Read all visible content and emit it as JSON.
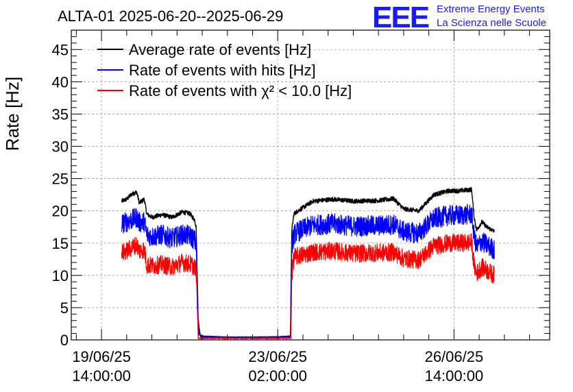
{
  "chart_data": {
    "type": "line",
    "title": "ALTA-01 2025-06-20--2025-06-29",
    "ylabel": "Rate [Hz]",
    "xlabel": "",
    "ylim": [
      0,
      48
    ],
    "yticks": [
      0,
      5,
      10,
      15,
      20,
      25,
      30,
      35,
      40,
      45
    ],
    "x_axis": {
      "unit": "days",
      "range_start_label": "19/06/25 14:00:00",
      "tick_labels": [
        {
          "date": "19/06/25",
          "time": "14:00:00",
          "days": 0
        },
        {
          "date": "23/06/25",
          "time": "02:00:00",
          "days": 3.5
        },
        {
          "date": "26/06/25",
          "time": "14:00:00",
          "days": 7
        }
      ],
      "xlim_days": [
        -0.6,
        8.9
      ]
    },
    "grid": true,
    "legend_position": "top-left",
    "series": [
      {
        "name": "Average rate of events [Hz]",
        "color": "#000000",
        "noise": 0.35,
        "points": [
          [
            0.4,
            21.5
          ],
          [
            0.5,
            21.8
          ],
          [
            0.6,
            22.6
          ],
          [
            0.7,
            22.9
          ],
          [
            0.75,
            21.2
          ],
          [
            0.85,
            21.8
          ],
          [
            0.9,
            19.5
          ],
          [
            1.0,
            19.0
          ],
          [
            1.2,
            19.4
          ],
          [
            1.4,
            19.0
          ],
          [
            1.6,
            19.8
          ],
          [
            1.75,
            19.6
          ],
          [
            1.85,
            18.6
          ],
          [
            1.88,
            17.5
          ],
          [
            1.92,
            3.0
          ],
          [
            1.96,
            0.8
          ],
          [
            2.0,
            0.6
          ],
          [
            2.5,
            0.45
          ],
          [
            3.0,
            0.45
          ],
          [
            3.5,
            0.5
          ],
          [
            3.75,
            0.6
          ],
          [
            3.78,
            17.0
          ],
          [
            3.82,
            19.5
          ],
          [
            3.9,
            20.0
          ],
          [
            4.2,
            21.5
          ],
          [
            4.6,
            21.8
          ],
          [
            5.0,
            21.5
          ],
          [
            5.5,
            21.6
          ],
          [
            5.8,
            21.9
          ],
          [
            6.0,
            20.3
          ],
          [
            6.3,
            20.0
          ],
          [
            6.6,
            22.5
          ],
          [
            6.9,
            23.1
          ],
          [
            7.1,
            23.1
          ],
          [
            7.35,
            23.3
          ],
          [
            7.4,
            19.0
          ],
          [
            7.45,
            17.0
          ],
          [
            7.55,
            18.3
          ],
          [
            7.65,
            17.5
          ],
          [
            7.8,
            16.8
          ]
        ]
      },
      {
        "name": "Rate of events with hits [Hz]",
        "color": "#0000ff",
        "noise": 1.6,
        "points": [
          [
            0.4,
            18.0
          ],
          [
            0.5,
            18.3
          ],
          [
            0.6,
            18.6
          ],
          [
            0.7,
            19.0
          ],
          [
            0.75,
            18.2
          ],
          [
            0.85,
            18.3
          ],
          [
            0.9,
            16.3
          ],
          [
            1.0,
            16.0
          ],
          [
            1.2,
            16.3
          ],
          [
            1.4,
            15.7
          ],
          [
            1.6,
            16.3
          ],
          [
            1.75,
            16.2
          ],
          [
            1.85,
            15.5
          ],
          [
            1.88,
            14.7
          ],
          [
            1.92,
            2.0
          ],
          [
            1.96,
            0.6
          ],
          [
            2.0,
            0.45
          ],
          [
            2.5,
            0.35
          ],
          [
            3.0,
            0.35
          ],
          [
            3.5,
            0.4
          ],
          [
            3.75,
            0.5
          ],
          [
            3.78,
            14.3
          ],
          [
            3.82,
            16.3
          ],
          [
            3.9,
            16.8
          ],
          [
            4.2,
            17.8
          ],
          [
            4.6,
            18.0
          ],
          [
            5.0,
            17.6
          ],
          [
            5.5,
            17.7
          ],
          [
            5.8,
            17.9
          ],
          [
            6.0,
            16.8
          ],
          [
            6.3,
            16.5
          ],
          [
            6.6,
            18.8
          ],
          [
            6.9,
            19.3
          ],
          [
            7.1,
            19.3
          ],
          [
            7.35,
            19.5
          ],
          [
            7.4,
            16.0
          ],
          [
            7.45,
            14.3
          ],
          [
            7.55,
            15.3
          ],
          [
            7.65,
            14.7
          ],
          [
            7.8,
            14.0
          ]
        ]
      },
      {
        "name": "Rate of events with χ² < 10.0 [Hz]",
        "color": "#ff0000",
        "noise": 1.4,
        "points": [
          [
            0.4,
            13.5
          ],
          [
            0.5,
            13.8
          ],
          [
            0.6,
            14.3
          ],
          [
            0.7,
            14.8
          ],
          [
            0.75,
            13.8
          ],
          [
            0.85,
            14.0
          ],
          [
            0.9,
            11.6
          ],
          [
            1.0,
            11.5
          ],
          [
            1.2,
            11.7
          ],
          [
            1.4,
            11.3
          ],
          [
            1.6,
            12.0
          ],
          [
            1.75,
            11.8
          ],
          [
            1.85,
            11.3
          ],
          [
            1.88,
            10.8
          ],
          [
            1.92,
            0.25
          ],
          [
            3.76,
            0.25
          ],
          [
            3.78,
            10.3
          ],
          [
            3.82,
            12.8
          ],
          [
            3.9,
            13.0
          ],
          [
            4.2,
            13.6
          ],
          [
            4.6,
            13.8
          ],
          [
            5.0,
            13.4
          ],
          [
            5.5,
            13.5
          ],
          [
            5.8,
            13.6
          ],
          [
            6.0,
            12.6
          ],
          [
            6.3,
            12.4
          ],
          [
            6.6,
            14.6
          ],
          [
            6.9,
            15.0
          ],
          [
            7.1,
            15.0
          ],
          [
            7.35,
            15.1
          ],
          [
            7.4,
            11.5
          ],
          [
            7.45,
            10.3
          ],
          [
            7.55,
            11.3
          ],
          [
            7.65,
            10.8
          ],
          [
            7.8,
            10.0
          ]
        ]
      }
    ]
  },
  "logo": {
    "mark": "EEE",
    "line1": "Extreme Energy Events",
    "line2": "La Scienza nelle Scuole",
    "color": "#1a1aff"
  }
}
